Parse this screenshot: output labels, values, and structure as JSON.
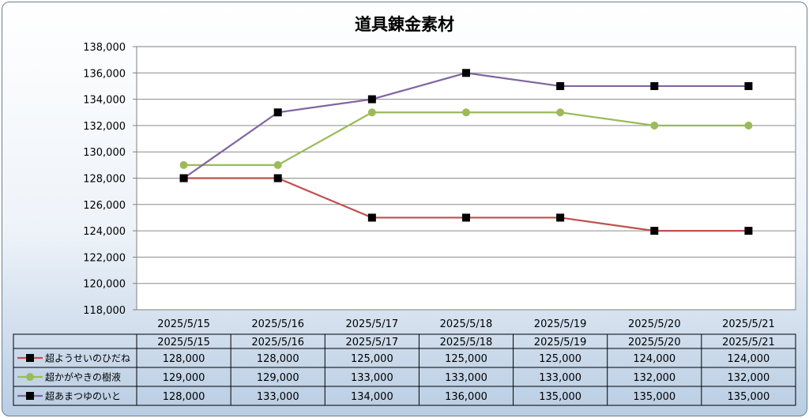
{
  "chart_data": {
    "type": "line",
    "title": "道具錬金素材",
    "categories": [
      "2025/5/15",
      "2025/5/16",
      "2025/5/17",
      "2025/5/18",
      "2025/5/19",
      "2025/5/20",
      "2025/5/21"
    ],
    "y_tick_labels": [
      "138,000",
      "136,000",
      "134,000",
      "132,000",
      "130,000",
      "128,000",
      "126,000",
      "124,000",
      "122,000",
      "120,000",
      "118,000"
    ],
    "ylim": [
      118000,
      138000
    ],
    "grid": true,
    "series": [
      {
        "name": "超ようせいのひだね",
        "color": "#c0504d",
        "marker": "square",
        "values": [
          128000,
          128000,
          125000,
          125000,
          125000,
          124000,
          124000
        ],
        "cells": [
          "128,000",
          "128,000",
          "125,000",
          "125,000",
          "125,000",
          "124,000",
          "124,000"
        ]
      },
      {
        "name": "超かがやきの樹液",
        "color": "#9bbb59",
        "marker": "circle",
        "values": [
          129000,
          129000,
          133000,
          133000,
          133000,
          132000,
          132000
        ],
        "cells": [
          "129,000",
          "129,000",
          "133,000",
          "133,000",
          "133,000",
          "132,000",
          "132,000"
        ]
      },
      {
        "name": "超あまつゆのいと",
        "color": "#8064a2",
        "marker": "square",
        "values": [
          128000,
          133000,
          134000,
          136000,
          135000,
          135000,
          135000
        ],
        "cells": [
          "128,000",
          "133,000",
          "134,000",
          "136,000",
          "135,000",
          "135,000",
          "135,000"
        ]
      }
    ]
  }
}
